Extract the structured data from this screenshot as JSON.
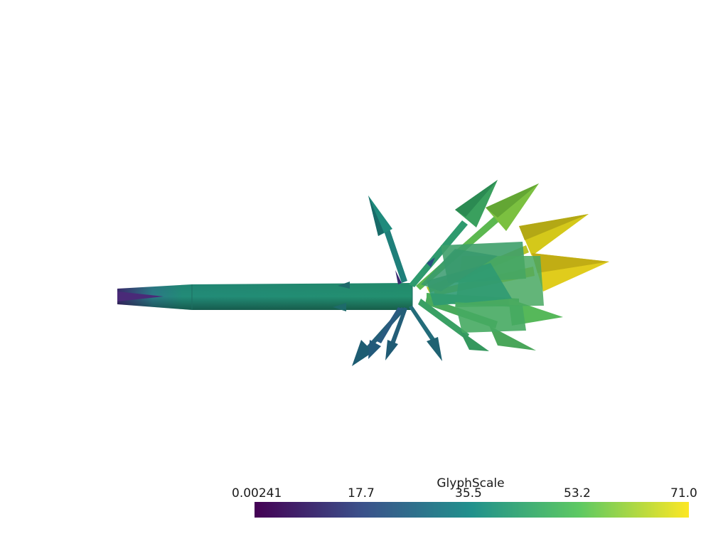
{
  "scene": {
    "render_type": "3d vector glyph plot (arrows)",
    "background_color": "#ffffff"
  },
  "colorbar": {
    "title": "GlyphScale",
    "ticks": [
      "0.00241",
      "17.7",
      "35.5",
      "53.2",
      "71.0"
    ],
    "colormap": "viridis",
    "colormap_stops": [
      "#440154",
      "#3b528b",
      "#21918c",
      "#5ec962",
      "#fde725"
    ]
  }
}
